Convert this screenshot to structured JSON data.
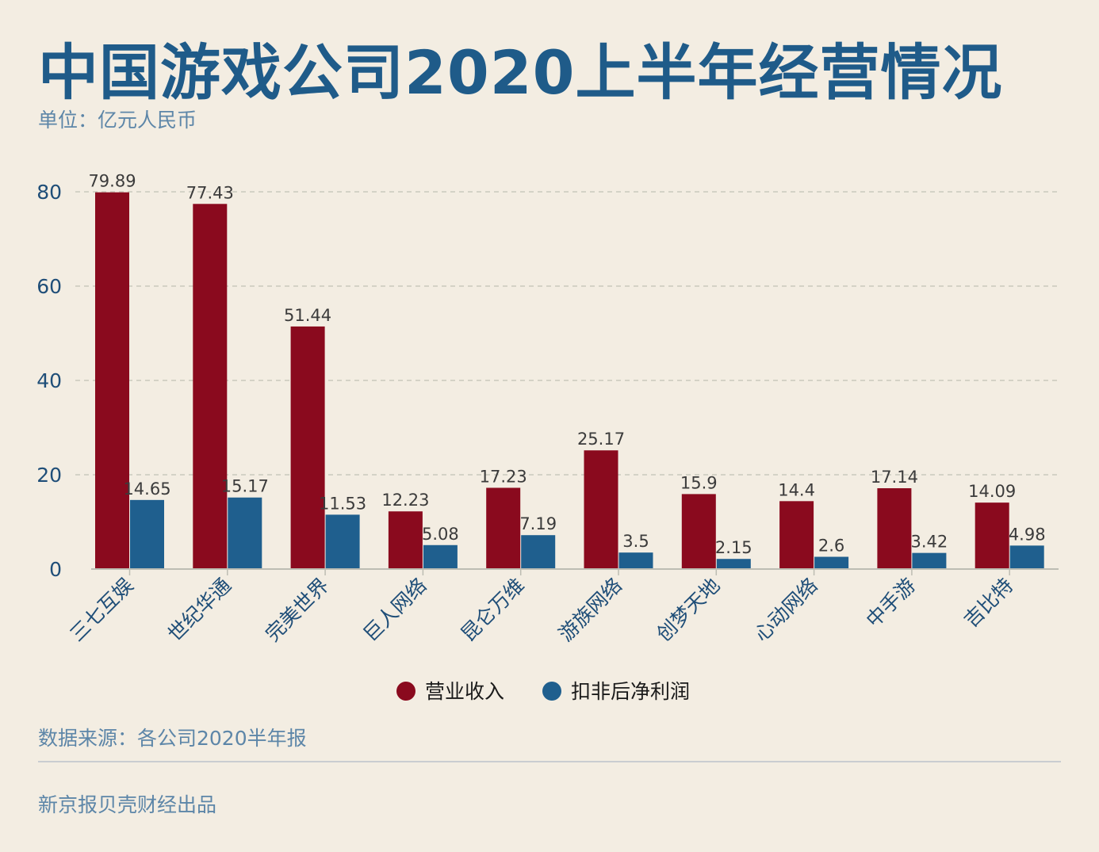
{
  "title": "中国游戏公司2020上半年经营情况",
  "unit_label": "单位：亿元人民币",
  "source": "数据来源：各公司2020半年报",
  "credit": "新京报贝壳财经出品",
  "colors": {
    "background": "#f3ede2",
    "title": "#1f5b89",
    "subtext": "#5d86a8",
    "revenue": "#8a0a1e",
    "profit": "#1f5f8e"
  },
  "chart_data": {
    "type": "bar",
    "categories": [
      "三七互娱",
      "世纪华通",
      "完美世界",
      "巨人网络",
      "昆仑万维",
      "游族网络",
      "创梦天地",
      "心动网络",
      "中手游",
      "吉比特"
    ],
    "series": [
      {
        "name": "营业收入",
        "values": [
          79.89,
          77.43,
          51.44,
          12.23,
          17.23,
          25.17,
          15.9,
          14.4,
          17.14,
          14.09
        ]
      },
      {
        "name": "扣非后净利润",
        "values": [
          14.65,
          15.17,
          11.53,
          5.08,
          7.19,
          3.5,
          2.15,
          2.6,
          3.42,
          4.98
        ]
      }
    ],
    "yticks": [
      0,
      20,
      40,
      60,
      80
    ],
    "ylim": [
      0,
      80
    ],
    "grid": true,
    "legend_position": "bottom-center"
  }
}
